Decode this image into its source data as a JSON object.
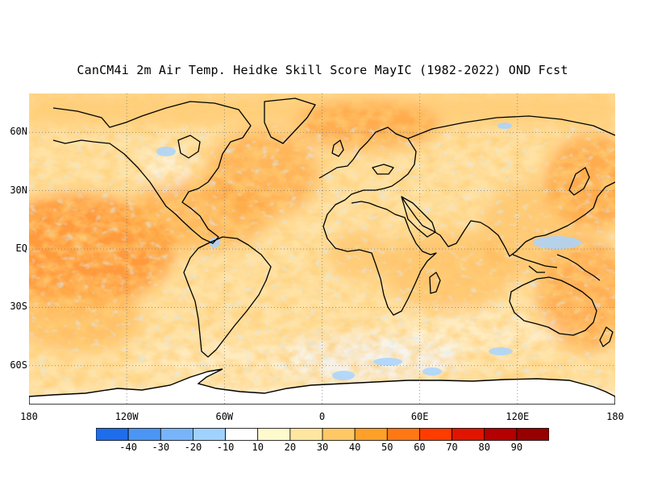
{
  "title": "CanCM4i 2m Air Temp. Heidke Skill Score MayIC (1982-2022) OND Fcst",
  "map": {
    "projection": "equirectangular",
    "lon_range": [
      -180,
      180
    ],
    "lat_range": [
      -80,
      80
    ],
    "lat_ticks": [
      {
        "value": 60,
        "label": "60N"
      },
      {
        "value": 30,
        "label": "30N"
      },
      {
        "value": 0,
        "label": "EQ"
      },
      {
        "value": -30,
        "label": "30S"
      },
      {
        "value": -60,
        "label": "60S"
      }
    ],
    "lon_ticks": [
      {
        "value": -180,
        "label": "180"
      },
      {
        "value": -120,
        "label": "120W"
      },
      {
        "value": -60,
        "label": "60W"
      },
      {
        "value": 0,
        "label": "0"
      },
      {
        "value": 60,
        "label": "60E"
      },
      {
        "value": 120,
        "label": "120E"
      },
      {
        "value": 180,
        "label": "180"
      }
    ],
    "gridlines": "dotted"
  },
  "colorbar": {
    "labels": [
      "-40",
      "-30",
      "-20",
      "-10",
      "10",
      "20",
      "30",
      "40",
      "50",
      "60",
      "70",
      "80",
      "90"
    ],
    "colors": [
      "#1e6eeb",
      "#4b96f5",
      "#78b4fa",
      "#a0d2ff",
      "#ffffff",
      "#ffface",
      "#ffe6a0",
      "#ffc864",
      "#ffa028",
      "#ff7814",
      "#ff3c00",
      "#e11400",
      "#b40000",
      "#960000"
    ]
  },
  "chart_data": {
    "type": "heatmap",
    "title": "CanCM4i 2m Air Temp. Heidke Skill Score MayIC (1982-2022) OND Fcst",
    "xlabel": "",
    "ylabel": "",
    "x_range": [
      -180,
      180
    ],
    "y_range": [
      -80,
      80
    ],
    "color_levels": [
      -40,
      -30,
      -20,
      -10,
      10,
      20,
      30,
      40,
      50,
      60,
      70,
      80,
      90
    ]
  }
}
